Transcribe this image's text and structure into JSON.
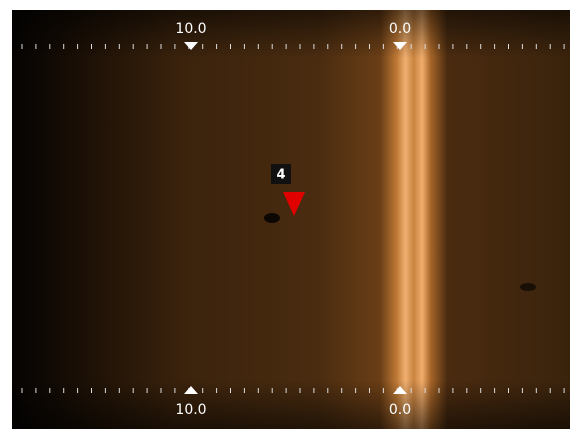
{
  "scale_top": {
    "labels": [
      "10.0",
      "0.0"
    ]
  },
  "scale_bottom": {
    "labels": [
      "10.0",
      "0.0"
    ]
  },
  "waypoint": {
    "label": "4"
  }
}
